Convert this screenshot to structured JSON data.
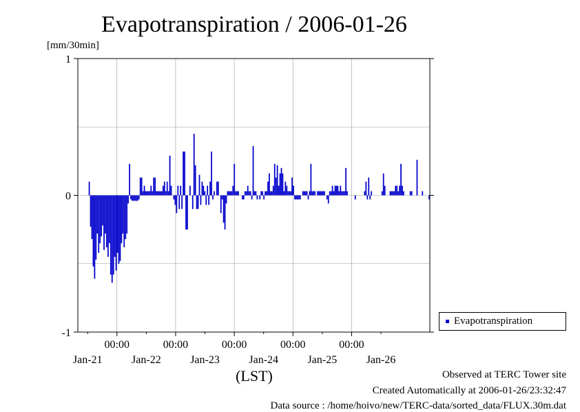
{
  "chart_data": {
    "type": "bar",
    "title": "Evapotranspiration / 2006-01-26",
    "ylabel": "[mm/30min]",
    "xlabel": "(LST)",
    "ylim": [
      -1,
      1
    ],
    "yticks": [
      "1",
      "0",
      "-1"
    ],
    "xticks_time": [
      "00:00",
      "00:00",
      "00:00",
      "00:00",
      "00:00"
    ],
    "xticks_date": [
      "Jan-21",
      "Jan-22",
      "Jan-23",
      "Jan-24",
      "Jan-25",
      "Jan-26"
    ],
    "x_unit": "hours",
    "x_start": "2006-01-20T08:00",
    "x_range_hours": [
      0,
      144
    ],
    "x_major_ticks_hours": [
      16,
      40,
      64,
      88,
      112
    ],
    "x_minor_ticks_hours": [
      4,
      28,
      52,
      76,
      100,
      124
    ],
    "grid": true,
    "legend_position": "right",
    "series": [
      {
        "name": "Evapotranspiration",
        "color": "#0000cc",
        "values": [
          0,
          0,
          0,
          0,
          0,
          0,
          0,
          0,
          0.1,
          -0.23,
          -0.32,
          -0.52,
          -0.61,
          -0.47,
          -0.28,
          -0.42,
          -0.35,
          -0.3,
          -0.22,
          -0.4,
          -0.28,
          -0.38,
          -0.45,
          -0.35,
          -0.58,
          -0.64,
          -0.58,
          -0.45,
          -0.55,
          -0.42,
          -0.5,
          -0.48,
          -0.35,
          -0.28,
          -0.38,
          -0.32,
          -0.28,
          -0.06,
          0.23,
          -0.03,
          -0.04,
          -0.04,
          -0.04,
          -0.04,
          -0.04,
          -0.03,
          0.13,
          0.13,
          0.03,
          0.07,
          0.03,
          0.03,
          0.03,
          0.03,
          0.07,
          0.03,
          0.13,
          0.13,
          0.03,
          0.03,
          0.03,
          0.03,
          0.03,
          0.07,
          0.1,
          0.03,
          0.1,
          0.03,
          0.29,
          0.07,
          0,
          -0.03,
          -0.07,
          -0.13,
          0.07,
          -0.1,
          0.07,
          -0.1,
          0.32,
          0.32,
          -0.25,
          -0.25,
          0,
          0.07,
          0,
          -0.1,
          0.45,
          0.22,
          -0.1,
          -0.1,
          0.15,
          -0.07,
          0.1,
          0.07,
          0.03,
          -0.07,
          0.07,
          -0.07,
          0.1,
          0.32,
          -0.03,
          0.03,
          0,
          0.1,
          0.1,
          0,
          -0.13,
          -0.03,
          -0.2,
          -0.25,
          -0.06,
          0.03,
          0.03,
          0.03,
          0.03,
          0.07,
          0.23,
          0.03,
          0.03,
          0.03,
          0,
          0,
          -0.03,
          -0.03,
          0.03,
          0.03,
          0.07,
          0.03,
          0.03,
          -0.03,
          0.36,
          0.03,
          0.03,
          -0.03,
          0,
          -0.03,
          0.03,
          0.03,
          -0.03,
          0.03,
          0.03,
          0.1,
          0.16,
          0.03,
          0.03,
          0.07,
          0.23,
          0.13,
          0.22,
          0.07,
          0.16,
          0.2,
          0.16,
          0.03,
          0.1,
          0.07,
          0.03,
          0.03,
          0.03,
          0.13,
          0.07,
          -0.03,
          -0.03,
          -0.03,
          -0.03,
          -0.03,
          0,
          0.03,
          0.03,
          0.03,
          0.03,
          -0.03,
          0.03,
          0.23,
          0.03,
          0.03,
          0.03,
          0,
          0.03,
          0.03,
          0.03,
          0.03,
          0.03,
          0.03,
          0,
          -0.03,
          -0.06,
          0.03,
          0.03,
          0.07,
          0.03,
          0.07,
          0.07,
          0.07,
          0.03,
          0.07,
          0.03,
          0.03,
          0.03,
          0.2,
          0.03,
          0,
          0,
          0,
          0,
          0,
          -0.03,
          0,
          0,
          0,
          0,
          0,
          0,
          0.03,
          0.1,
          -0.03,
          0.13,
          -0.03,
          0.03,
          0,
          0,
          0,
          0,
          0,
          0,
          0,
          0.03,
          0.16,
          0.07,
          0,
          0,
          0,
          0.03,
          0.03,
          0.03,
          0.03,
          0.07,
          0.07,
          0.03,
          0.07,
          0.23,
          0.07,
          0.03,
          0,
          0,
          0,
          0,
          0.03,
          0.03,
          0,
          0,
          0,
          0.26,
          0,
          0,
          0,
          0.03,
          0,
          0,
          0,
          0,
          -0.03
        ]
      }
    ]
  },
  "footer": {
    "observed": "Observed at TERC Tower site",
    "created": "Created Automatically at 2006-01-26/23:32:47",
    "source": "Data source : /home/hoivo/new/TERC-data/sorted_data/FLUX.30m.dat"
  }
}
